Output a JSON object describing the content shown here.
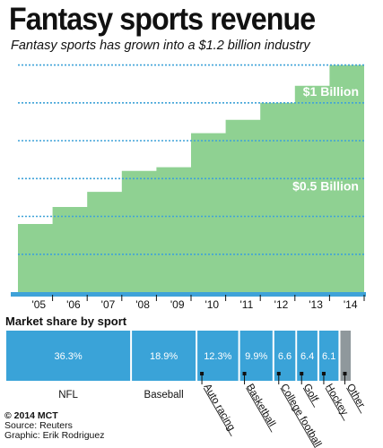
{
  "title": "Fantasy sports revenue",
  "subtitle": "Fantasy sports has grown into a $1.2 billion industry",
  "chart_data": [
    {
      "type": "area",
      "step": true,
      "title": "Fantasy sports revenue",
      "subtitle": "Fantasy sports has grown into a $1.2 billion industry",
      "x": [
        "'05",
        "'06",
        "'07",
        "'08",
        "'09",
        "'10",
        "'11",
        "'12",
        "'13",
        "'14"
      ],
      "values": [
        0.36,
        0.45,
        0.53,
        0.64,
        0.66,
        0.84,
        0.91,
        1.0,
        1.09,
        1.2
      ],
      "ylim": [
        0,
        1.25
      ],
      "grid": true,
      "annotations": [
        {
          "text": "$1 Billion",
          "value": 1.0
        },
        {
          "text": "$0.5 Billion",
          "value": 0.5
        }
      ],
      "colors": {
        "fill": "#8fd192",
        "gridline": "#3fa2d8",
        "axis": "#3fa2d8"
      }
    },
    {
      "type": "bar",
      "stacked": true,
      "title": "Market share by sport",
      "categories": [
        "NFL",
        "Baseball",
        "Auto racing",
        "Basketball",
        "College football",
        "Golf",
        "Hockey",
        "Other"
      ],
      "values": [
        36.3,
        18.9,
        12.3,
        9.9,
        6.6,
        6.4,
        6.1,
        3.5
      ],
      "labels": [
        "36.3%",
        "18.9%",
        "12.3%",
        "9.9%",
        "6.6",
        "6.4",
        "6.1",
        ""
      ],
      "colors": {
        "segment": "#3aa3d8",
        "other": "#8f989c"
      }
    }
  ],
  "footer": {
    "copyright": "© 2014 MCT",
    "source": "Source: Reuters",
    "graphic": "Graphic: Erik Rodriguez"
  }
}
